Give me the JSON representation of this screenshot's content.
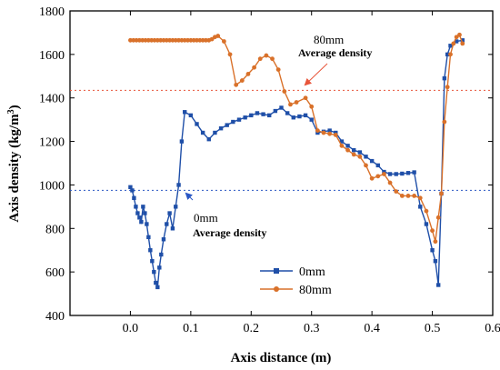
{
  "chart_data": {
    "type": "line",
    "title": "",
    "xlabel": "Axis distance (m)",
    "ylabel_main": "Axis density (kg/m",
    "ylabel_sup": "3",
    "ylabel_close": ")",
    "xlim": [
      -0.1,
      0.6
    ],
    "ylim": [
      400,
      1800
    ],
    "x_ticks": [
      "0.0",
      "0.1",
      "0.2",
      "0.3",
      "0.4",
      "0.5",
      "0.6"
    ],
    "x_tick_values": [
      0.0,
      0.1,
      0.2,
      0.3,
      0.4,
      0.5,
      0.6
    ],
    "y_ticks": [
      "400",
      "600",
      "800",
      "1000",
      "1200",
      "1400",
      "1600",
      "1800"
    ],
    "y_tick_values": [
      400,
      600,
      800,
      1000,
      1200,
      1400,
      1600,
      1800
    ],
    "legend_position": "bottom-center",
    "series": [
      {
        "name": "0mm",
        "color": "#1f4fa8",
        "marker": "square",
        "points": [
          [
            0.0,
            990
          ],
          [
            0.003,
            975
          ],
          [
            0.006,
            940
          ],
          [
            0.009,
            900
          ],
          [
            0.012,
            870
          ],
          [
            0.015,
            850
          ],
          [
            0.018,
            830
          ],
          [
            0.021,
            900
          ],
          [
            0.024,
            870
          ],
          [
            0.027,
            820
          ],
          [
            0.03,
            760
          ],
          [
            0.033,
            700
          ],
          [
            0.036,
            650
          ],
          [
            0.039,
            600
          ],
          [
            0.042,
            550
          ],
          [
            0.045,
            530
          ],
          [
            0.048,
            620
          ],
          [
            0.051,
            680
          ],
          [
            0.055,
            750
          ],
          [
            0.06,
            820
          ],
          [
            0.065,
            870
          ],
          [
            0.07,
            800
          ],
          [
            0.075,
            900
          ],
          [
            0.08,
            1000
          ],
          [
            0.085,
            1200
          ],
          [
            0.09,
            1335
          ],
          [
            0.1,
            1320
          ],
          [
            0.11,
            1280
          ],
          [
            0.12,
            1240
          ],
          [
            0.13,
            1210
          ],
          [
            0.14,
            1240
          ],
          [
            0.15,
            1260
          ],
          [
            0.16,
            1275
          ],
          [
            0.17,
            1290
          ],
          [
            0.18,
            1300
          ],
          [
            0.19,
            1310
          ],
          [
            0.2,
            1320
          ],
          [
            0.21,
            1330
          ],
          [
            0.22,
            1325
          ],
          [
            0.23,
            1320
          ],
          [
            0.24,
            1340
          ],
          [
            0.25,
            1355
          ],
          [
            0.26,
            1330
          ],
          [
            0.27,
            1310
          ],
          [
            0.28,
            1315
          ],
          [
            0.29,
            1320
          ],
          [
            0.3,
            1300
          ],
          [
            0.31,
            1240
          ],
          [
            0.32,
            1245
          ],
          [
            0.33,
            1250
          ],
          [
            0.34,
            1240
          ],
          [
            0.35,
            1200
          ],
          [
            0.36,
            1180
          ],
          [
            0.37,
            1160
          ],
          [
            0.38,
            1150
          ],
          [
            0.39,
            1130
          ],
          [
            0.4,
            1110
          ],
          [
            0.41,
            1090
          ],
          [
            0.42,
            1060
          ],
          [
            0.43,
            1050
          ],
          [
            0.44,
            1050
          ],
          [
            0.45,
            1052
          ],
          [
            0.46,
            1055
          ],
          [
            0.47,
            1058
          ],
          [
            0.48,
            900
          ],
          [
            0.49,
            820
          ],
          [
            0.5,
            700
          ],
          [
            0.505,
            650
          ],
          [
            0.51,
            540
          ],
          [
            0.515,
            960
          ],
          [
            0.52,
            1490
          ],
          [
            0.525,
            1600
          ],
          [
            0.53,
            1640
          ],
          [
            0.54,
            1660
          ],
          [
            0.55,
            1665
          ]
        ]
      },
      {
        "name": "80mm",
        "color": "#d9712a",
        "marker": "circle",
        "points": [
          [
            0.0,
            1665
          ],
          [
            0.005,
            1665
          ],
          [
            0.01,
            1665
          ],
          [
            0.015,
            1665
          ],
          [
            0.02,
            1665
          ],
          [
            0.025,
            1665
          ],
          [
            0.03,
            1665
          ],
          [
            0.035,
            1665
          ],
          [
            0.04,
            1665
          ],
          [
            0.045,
            1665
          ],
          [
            0.05,
            1665
          ],
          [
            0.055,
            1665
          ],
          [
            0.06,
            1665
          ],
          [
            0.065,
            1665
          ],
          [
            0.07,
            1665
          ],
          [
            0.075,
            1665
          ],
          [
            0.08,
            1665
          ],
          [
            0.085,
            1665
          ],
          [
            0.09,
            1665
          ],
          [
            0.095,
            1665
          ],
          [
            0.1,
            1665
          ],
          [
            0.105,
            1665
          ],
          [
            0.11,
            1665
          ],
          [
            0.115,
            1665
          ],
          [
            0.12,
            1665
          ],
          [
            0.125,
            1665
          ],
          [
            0.13,
            1665
          ],
          [
            0.135,
            1670
          ],
          [
            0.14,
            1680
          ],
          [
            0.145,
            1685
          ],
          [
            0.155,
            1660
          ],
          [
            0.165,
            1600
          ],
          [
            0.175,
            1460
          ],
          [
            0.185,
            1480
          ],
          [
            0.195,
            1510
          ],
          [
            0.205,
            1540
          ],
          [
            0.215,
            1580
          ],
          [
            0.225,
            1595
          ],
          [
            0.235,
            1580
          ],
          [
            0.245,
            1530
          ],
          [
            0.255,
            1430
          ],
          [
            0.265,
            1370
          ],
          [
            0.275,
            1380
          ],
          [
            0.29,
            1400
          ],
          [
            0.3,
            1360
          ],
          [
            0.31,
            1250
          ],
          [
            0.32,
            1240
          ],
          [
            0.33,
            1235
          ],
          [
            0.34,
            1230
          ],
          [
            0.35,
            1180
          ],
          [
            0.36,
            1160
          ],
          [
            0.37,
            1140
          ],
          [
            0.38,
            1130
          ],
          [
            0.39,
            1090
          ],
          [
            0.4,
            1030
          ],
          [
            0.41,
            1040
          ],
          [
            0.42,
            1050
          ],
          [
            0.43,
            1010
          ],
          [
            0.44,
            970
          ],
          [
            0.45,
            950
          ],
          [
            0.46,
            950
          ],
          [
            0.47,
            950
          ],
          [
            0.48,
            940
          ],
          [
            0.49,
            880
          ],
          [
            0.5,
            790
          ],
          [
            0.505,
            740
          ],
          [
            0.51,
            850
          ],
          [
            0.515,
            960
          ],
          [
            0.52,
            1290
          ],
          [
            0.525,
            1450
          ],
          [
            0.53,
            1600
          ],
          [
            0.535,
            1650
          ],
          [
            0.54,
            1680
          ],
          [
            0.545,
            1690
          ],
          [
            0.55,
            1650
          ]
        ]
      }
    ],
    "reference_lines": [
      {
        "name": "80mm Average density",
        "y": 1435,
        "color": "#e8553a"
      },
      {
        "name": "0mm Average density",
        "y": 975,
        "color": "#2a57c4"
      }
    ],
    "annotations": [
      {
        "line1": "80mm",
        "line2": "Average density"
      },
      {
        "line1": "0mm",
        "line2": "Average density"
      }
    ]
  }
}
